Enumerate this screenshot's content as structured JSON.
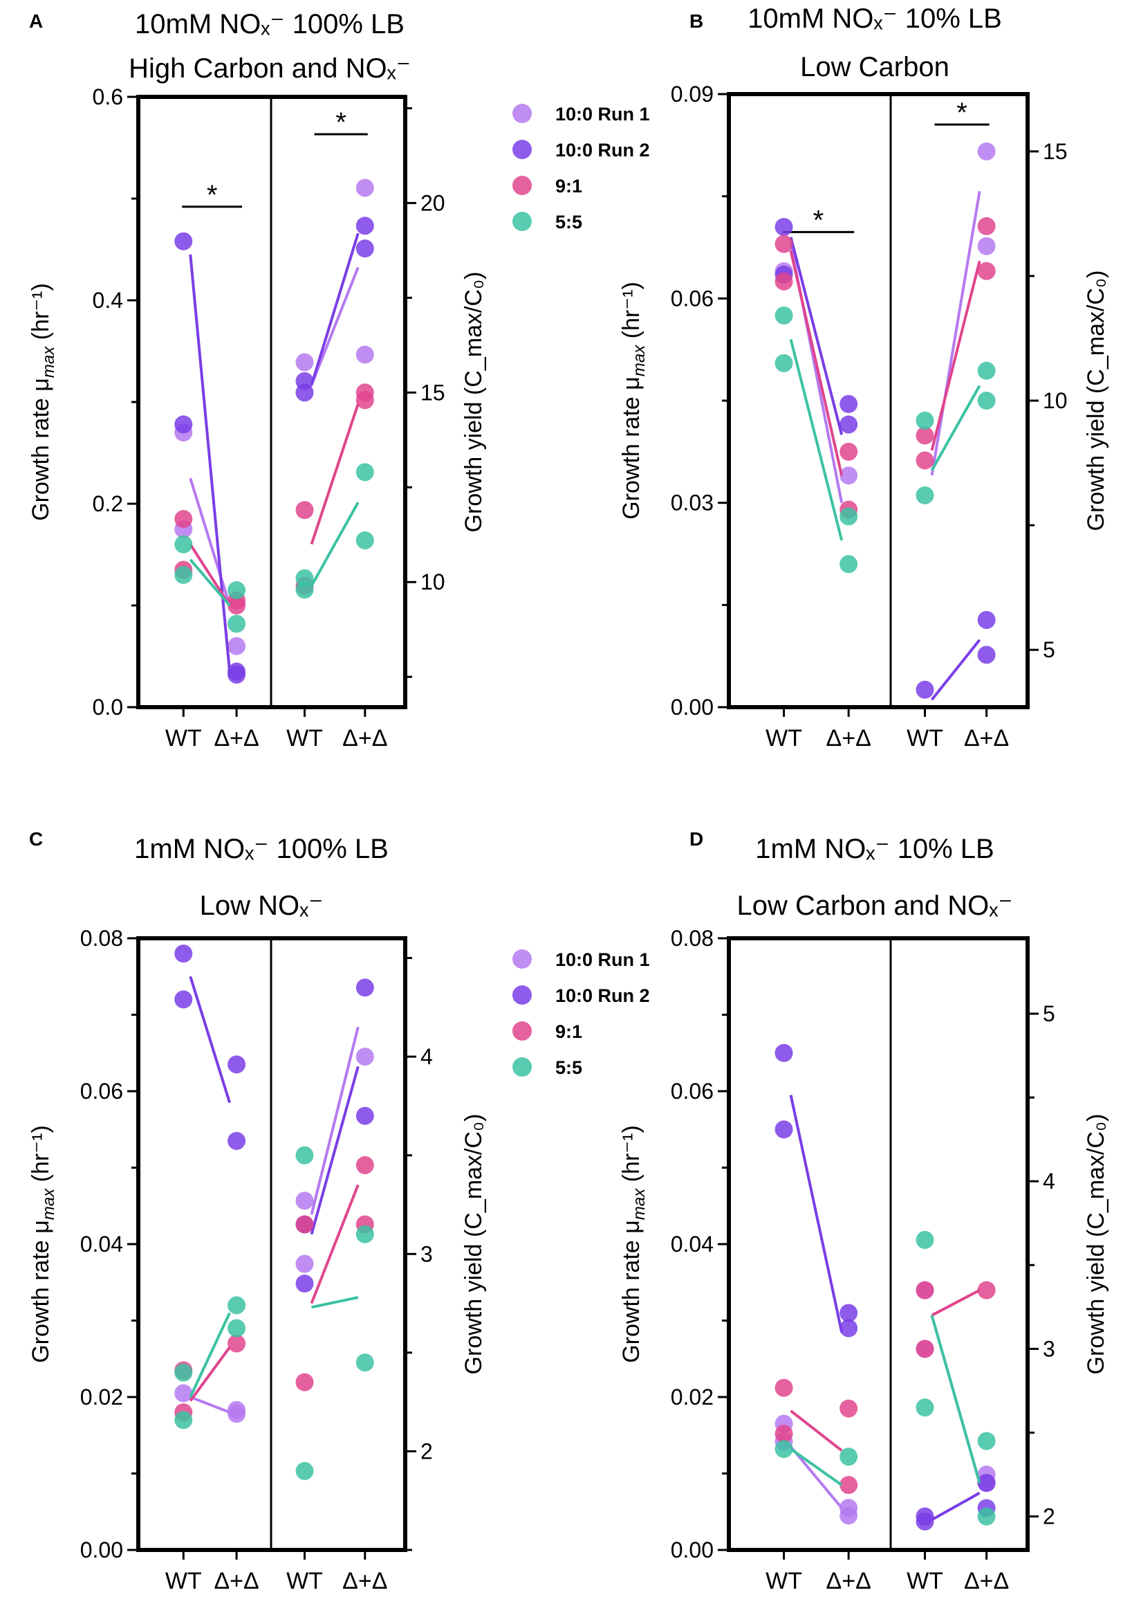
{
  "chart_data": [
    {
      "panel": "A",
      "type": "scatter",
      "title": "10mM NOₓ⁻ 100% LB",
      "subtitle": "High Carbon and NOₓ⁻",
      "ylabel_left": "Growth rate μ_max (hr⁻¹)",
      "ylabel_right": "Growth yield (C_max/C₀)",
      "ylim_left": [
        0,
        0.6
      ],
      "yticks_left": [
        "0.0",
        "0.2",
        "0.4",
        "0.6"
      ],
      "ylim_right": [
        6.7,
        22.8
      ],
      "yticks_right": [
        "10",
        "15",
        "20"
      ],
      "categories": [
        "WT",
        "Δ+Δ",
        "WT",
        "Δ+Δ"
      ],
      "significance": [
        {
          "group": "rate",
          "label": "*"
        },
        {
          "group": "yield",
          "label": "*"
        }
      ],
      "legend": true,
      "series": [
        {
          "name": "10:0 Run 1",
          "color": "#b57af0",
          "rate": {
            "wt": [
              0.27,
              0.175
            ],
            "mut": [
              0.06
            ],
            "line": [
              0.225,
              0.1
            ]
          },
          "yield": {
            "wt": [
              15.8
            ],
            "mut": [
              20.4,
              16.0
            ],
            "line": [
              15.2,
              18.3
            ]
          }
        },
        {
          "name": "10:0 Run 2",
          "color": "#7a3ee6",
          "rate": {
            "wt": [
              0.458,
              0.278
            ],
            "mut": [
              0.035,
              0.032
            ],
            "line": [
              0.445,
              0.035
            ]
          },
          "yield": {
            "wt": [
              15.3,
              15.0
            ],
            "mut": [
              19.4,
              18.8
            ],
            "line": [
              15.2,
              19.2
            ]
          }
        },
        {
          "name": "9:1",
          "color": "#e0458e",
          "rate": {
            "wt": [
              0.185,
              0.135
            ],
            "mut": [
              0.105,
              0.1
            ],
            "line": [
              0.16,
              0.1
            ]
          },
          "yield": {
            "wt": [
              11.9,
              9.9
            ],
            "mut": [
              15.0,
              14.8
            ],
            "line": [
              11.0,
              14.7
            ]
          }
        },
        {
          "name": "5:5",
          "color": "#3cc2a2",
          "rate": {
            "wt": [
              0.16,
              0.13
            ],
            "mut": [
              0.115,
              0.082
            ],
            "line": [
              0.145,
              0.1
            ]
          },
          "yield": {
            "wt": [
              10.1,
              9.8
            ],
            "mut": [
              12.9,
              11.1
            ],
            "line": [
              9.9,
              12.1
            ]
          }
        }
      ]
    },
    {
      "panel": "B",
      "type": "scatter",
      "title": "10mM NOₓ⁻ 10% LB",
      "subtitle": "Low Carbon",
      "ylabel_left": "Growth rate μ_max (hr⁻¹)",
      "ylabel_right": "Growth yield (C_max/C₀)",
      "ylim_left": [
        0,
        0.09
      ],
      "yticks_left": [
        "0.00",
        "0.03",
        "0.06",
        "0.09"
      ],
      "ylim_right": [
        3.85,
        16.15
      ],
      "yticks_right": [
        "5",
        "10",
        "15"
      ],
      "categories": [
        "WT",
        "Δ+Δ",
        "WT",
        "Δ+Δ"
      ],
      "significance": [
        {
          "group": "rate",
          "label": "*"
        },
        {
          "group": "yield",
          "label": "*"
        }
      ],
      "legend": false,
      "series": [
        {
          "name": "10:0 Run 1",
          "color": "#b57af0",
          "rate": {
            "wt": [
              0.064
            ],
            "mut": [
              0.034
            ],
            "line": [
              0.068,
              0.03
            ]
          },
          "yield": {
            "wt": [],
            "mut": [
              15.0,
              13.1
            ],
            "line": [
              8.5,
              14.2
            ]
          }
        },
        {
          "name": "10:0 Run 2",
          "color": "#7a3ee6",
          "rate": {
            "wt": [
              0.0705,
              0.0635
            ],
            "mut": [
              0.0445,
              0.0415
            ],
            "line": [
              0.069,
              0.04
            ]
          },
          "yield": {
            "wt": [
              4.2
            ],
            "mut": [
              5.6,
              4.9
            ],
            "line": [
              4.0,
              5.2
            ]
          }
        },
        {
          "name": "9:1",
          "color": "#e0458e",
          "rate": {
            "wt": [
              0.068,
              0.0625
            ],
            "mut": [
              0.0375,
              0.029
            ],
            "line": [
              0.067,
              0.034
            ]
          },
          "yield": {
            "wt": [
              9.3,
              8.8
            ],
            "mut": [
              13.5,
              12.6
            ],
            "line": [
              9.0,
              12.8
            ]
          }
        },
        {
          "name": "5:5",
          "color": "#3cc2a2",
          "rate": {
            "wt": [
              0.0575,
              0.0505
            ],
            "mut": [
              0.028,
              0.021
            ],
            "line": [
              0.054,
              0.0245
            ]
          },
          "yield": {
            "wt": [
              9.6,
              8.1
            ],
            "mut": [
              10.6,
              10.0
            ],
            "line": [
              8.6,
              10.3
            ]
          }
        }
      ]
    },
    {
      "panel": "C",
      "type": "scatter",
      "title": "1mM NOₓ⁻ 100% LB",
      "subtitle": "Low NOₓ⁻",
      "ylabel_left": "Growth rate μ_max (hr⁻¹)",
      "ylabel_right": "Growth yield (C_max/C₀)",
      "ylim_left": [
        0,
        0.08
      ],
      "yticks_left": [
        "0.00",
        "0.02",
        "0.04",
        "0.06",
        "0.08"
      ],
      "ylim_right": [
        1.5,
        4.6
      ],
      "yticks_right": [
        "2",
        "3",
        "4"
      ],
      "categories": [
        "WT",
        "Δ+Δ",
        "WT",
        "Δ+Δ"
      ],
      "significance": [],
      "legend": true,
      "series": [
        {
          "name": "10:0 Run 1",
          "color": "#b57af0",
          "rate": {
            "wt": [
              0.0205
            ],
            "mut": [
              0.0183,
              0.0178
            ],
            "line": [
              0.02,
              0.018
            ]
          },
          "yield": {
            "wt": [
              3.27,
              2.95
            ],
            "mut": [
              4.0
            ],
            "line": [
              3.2,
              4.15
            ]
          }
        },
        {
          "name": "10:0 Run 2",
          "color": "#7a3ee6",
          "rate": {
            "wt": [
              0.078,
              0.072
            ],
            "mut": [
              0.0635,
              0.0535
            ],
            "line": [
              0.075,
              0.0585
            ]
          },
          "yield": {
            "wt": [
              3.15,
              2.85
            ],
            "mut": [
              4.35,
              3.7
            ],
            "line": [
              3.1,
              3.95
            ]
          }
        },
        {
          "name": "9:1",
          "color": "#e0458e",
          "rate": {
            "wt": [
              0.0235,
              0.018
            ],
            "mut": [
              0.027
            ],
            "line": [
              0.0195,
              0.0265
            ]
          },
          "yield": {
            "wt": [
              3.15,
              2.35
            ],
            "mut": [
              3.45,
              3.15
            ],
            "line": [
              2.75,
              3.35
            ]
          }
        },
        {
          "name": "5:5",
          "color": "#3cc2a2",
          "rate": {
            "wt": [
              0.0232,
              0.017
            ],
            "mut": [
              0.032,
              0.029
            ],
            "line": [
              0.02,
              0.031
            ]
          },
          "yield": {
            "wt": [
              3.5,
              1.9
            ],
            "mut": [
              3.1,
              2.45
            ],
            "line": [
              2.73,
              2.78
            ]
          }
        }
      ]
    },
    {
      "panel": "D",
      "type": "scatter",
      "title": "1mM NOₓ⁻ 10% LB",
      "subtitle": "Low Carbon and NOₓ⁻",
      "ylabel_left": "Growth rate μ_max (hr⁻¹)",
      "ylabel_right": "Growth yield (C_max/C₀)",
      "ylim_left": [
        0,
        0.08
      ],
      "yticks_left": [
        "0.00",
        "0.02",
        "0.04",
        "0.06",
        "0.08"
      ],
      "ylim_right": [
        1.8,
        5.45
      ],
      "yticks_right": [
        "2",
        "3",
        "4",
        "5"
      ],
      "categories": [
        "WT",
        "Δ+Δ",
        "WT",
        "Δ+Δ"
      ],
      "significance": [],
      "legend": false,
      "series": [
        {
          "name": "10:0 Run 1",
          "color": "#b57af0",
          "rate": {
            "wt": [
              0.0165,
              0.0142
            ],
            "mut": [
              0.0045,
              0.0055
            ],
            "line": [
              0.0135,
              0.0055
            ]
          },
          "yield": {
            "wt": [
              3.35,
              3.0
            ],
            "mut": [
              2.25,
              2.2
            ],
            "line": [
              3.2,
              2.2
            ]
          }
        },
        {
          "name": "10:0 Run 2",
          "color": "#7a3ee6",
          "rate": {
            "wt": [
              0.065,
              0.055
            ],
            "mut": [
              0.031,
              0.029
            ],
            "line": [
              0.0595,
              0.0285
            ]
          },
          "yield": {
            "wt": [
              2.0,
              1.97
            ],
            "mut": [
              2.2,
              2.05
            ],
            "line": [
              1.98,
              2.14
            ]
          }
        },
        {
          "name": "9:1",
          "color": "#e0458e",
          "rate": {
            "wt": [
              0.0212,
              0.0152
            ],
            "mut": [
              0.0185,
              0.0085
            ],
            "line": [
              0.0182,
              0.013
            ]
          },
          "yield": {
            "wt": [
              3.35,
              3.0
            ],
            "mut": [
              3.35
            ],
            "line": [
              3.2,
              3.35
            ]
          }
        },
        {
          "name": "5:5",
          "color": "#3cc2a2",
          "rate": {
            "wt": [
              0.0132
            ],
            "mut": [
              0.0122
            ],
            "line": [
              0.0132,
              0.0085
            ]
          },
          "yield": {
            "wt": [
              3.65,
              2.65
            ],
            "mut": [
              2.45,
              2.0
            ],
            "line": [
              3.2,
              2.2
            ]
          }
        }
      ]
    }
  ]
}
